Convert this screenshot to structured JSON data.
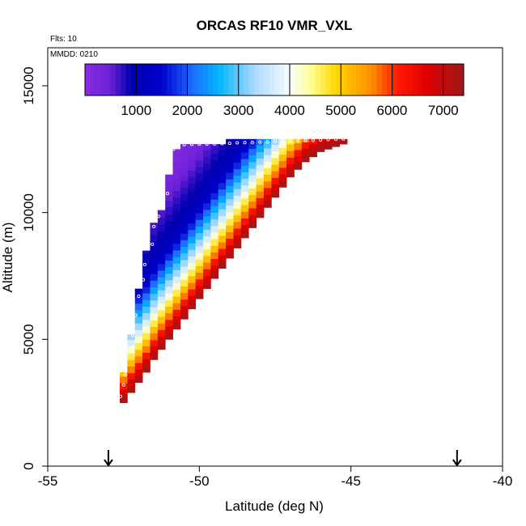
{
  "chart_data": {
    "type": "heatmap",
    "title": "ORCAS RF10 VMR_VXL",
    "annotations": {
      "flights": "Flts: 10",
      "date": "MMDD: 0210"
    },
    "xlabel": "Latitude (deg N)",
    "ylabel": "Altitude (m)",
    "xlim": [
      -55,
      -40
    ],
    "ylim": [
      0,
      16500
    ],
    "x_ticks": [
      -55,
      -50,
      -45,
      -40
    ],
    "y_ticks": [
      0,
      5000,
      10000,
      15000
    ],
    "grid": false,
    "colorbar": {
      "position": "top",
      "range": [
        0,
        7400
      ],
      "ticks": [
        1000,
        2000,
        3000,
        4000,
        5000,
        6000,
        7000
      ],
      "stops": [
        {
          "v": 0,
          "c": "#8a2be2"
        },
        {
          "v": 500,
          "c": "#6a20d8"
        },
        {
          "v": 900,
          "c": "#0000b0"
        },
        {
          "v": 1500,
          "c": "#0000cd"
        },
        {
          "v": 2100,
          "c": "#1e6cff"
        },
        {
          "v": 2600,
          "c": "#00b4ff"
        },
        {
          "v": 3300,
          "c": "#a8d8ff"
        },
        {
          "v": 4000,
          "c": "#f8fcff"
        },
        {
          "v": 4400,
          "c": "#ffff9a"
        },
        {
          "v": 4900,
          "c": "#ffd700"
        },
        {
          "v": 5600,
          "c": "#ff8c00"
        },
        {
          "v": 6100,
          "c": "#ff1a00"
        },
        {
          "v": 6700,
          "c": "#dd0000"
        },
        {
          "v": 7400,
          "c": "#a01818"
        }
      ]
    },
    "field": {
      "lat_step": 0.25,
      "alt_step": 260,
      "columns": [
        {
          "lat": -52.5,
          "alt_bottom": 2500,
          "alt_top": 3700
        },
        {
          "lat": -52.25,
          "alt_bottom": 2900,
          "alt_top": 5200
        },
        {
          "lat": -52.0,
          "alt_bottom": 3300,
          "alt_top": 7000
        },
        {
          "lat": -51.75,
          "alt_bottom": 3700,
          "alt_top": 8500
        },
        {
          "lat": -51.5,
          "alt_bottom": 4200,
          "alt_top": 9600
        },
        {
          "lat": -51.25,
          "alt_bottom": 4600,
          "alt_top": 10100
        },
        {
          "lat": -51.0,
          "alt_bottom": 5000,
          "alt_top": 11500
        },
        {
          "lat": -50.75,
          "alt_bottom": 5400,
          "alt_top": 12500
        },
        {
          "lat": -50.5,
          "alt_bottom": 5800,
          "alt_top": 12700
        },
        {
          "lat": -50.25,
          "alt_bottom": 6200,
          "alt_top": 12700
        },
        {
          "lat": -50.0,
          "alt_bottom": 6600,
          "alt_top": 12700
        },
        {
          "lat": -49.75,
          "alt_bottom": 7000,
          "alt_top": 12700
        },
        {
          "lat": -49.5,
          "alt_bottom": 7400,
          "alt_top": 12700
        },
        {
          "lat": -49.25,
          "alt_bottom": 7800,
          "alt_top": 12700
        },
        {
          "lat": -49.0,
          "alt_bottom": 8200,
          "alt_top": 12900
        },
        {
          "lat": -48.75,
          "alt_bottom": 8600,
          "alt_top": 12900
        },
        {
          "lat": -48.5,
          "alt_bottom": 9000,
          "alt_top": 12900
        },
        {
          "lat": -48.25,
          "alt_bottom": 9400,
          "alt_top": 12900
        },
        {
          "lat": -48.0,
          "alt_bottom": 9800,
          "alt_top": 12900
        },
        {
          "lat": -47.75,
          "alt_bottom": 10200,
          "alt_top": 12900
        },
        {
          "lat": -47.5,
          "alt_bottom": 10600,
          "alt_top": 12900
        },
        {
          "lat": -47.25,
          "alt_bottom": 11000,
          "alt_top": 12900
        },
        {
          "lat": -47.0,
          "alt_bottom": 11400,
          "alt_top": 12900
        },
        {
          "lat": -46.75,
          "alt_bottom": 11700,
          "alt_top": 12900
        },
        {
          "lat": -46.5,
          "alt_bottom": 12000,
          "alt_top": 12900
        },
        {
          "lat": -46.25,
          "alt_bottom": 12200,
          "alt_top": 12900
        },
        {
          "lat": -46.0,
          "alt_bottom": 12400,
          "alt_top": 12900
        },
        {
          "lat": -45.75,
          "alt_bottom": 12500,
          "alt_top": 12900
        },
        {
          "lat": -45.5,
          "alt_bottom": 12600,
          "alt_top": 12900
        },
        {
          "lat": -45.25,
          "alt_bottom": 12700,
          "alt_top": 12900
        }
      ],
      "vmr_profile": [
        {
          "d": 0,
          "v": 7300
        },
        {
          "d": 500,
          "v": 6300
        },
        {
          "d": 1000,
          "v": 5200
        },
        {
          "d": 1500,
          "v": 4300
        },
        {
          "d": 2000,
          "v": 3400
        },
        {
          "d": 2600,
          "v": 2500
        },
        {
          "d": 3200,
          "v": 1600
        },
        {
          "d": 4000,
          "v": 1000
        },
        {
          "d": 5000,
          "v": 700
        },
        {
          "d": 6000,
          "v": 300
        },
        {
          "d": 8000,
          "v": 100
        }
      ]
    },
    "flight_track": [
      {
        "lat": -52.6,
        "alt": 2750
      },
      {
        "lat": -52.5,
        "alt": 3200
      },
      {
        "lat": -52.45,
        "alt": 3600
      },
      {
        "lat": -52.2,
        "alt": 4700
      },
      {
        "lat": -52.2,
        "alt": 5150
      },
      {
        "lat": -52.1,
        "alt": 5950
      },
      {
        "lat": -52.0,
        "alt": 6700
      },
      {
        "lat": -51.85,
        "alt": 7350
      },
      {
        "lat": -51.8,
        "alt": 7950
      },
      {
        "lat": -51.55,
        "alt": 8750
      },
      {
        "lat": -51.5,
        "alt": 9450
      },
      {
        "lat": -51.35,
        "alt": 9850
      },
      {
        "lat": -51.05,
        "alt": 10750
      },
      {
        "lat": -51.0,
        "alt": 11650
      },
      {
        "lat": -50.95,
        "alt": 12150
      },
      {
        "lat": -50.85,
        "alt": 12500
      },
      {
        "lat": -50.75,
        "alt": 12650
      },
      {
        "lat": -50.5,
        "alt": 12680
      },
      {
        "lat": -50.25,
        "alt": 12690
      },
      {
        "lat": -50.0,
        "alt": 12700
      },
      {
        "lat": -49.75,
        "alt": 12700
      },
      {
        "lat": -49.5,
        "alt": 12710
      },
      {
        "lat": -49.25,
        "alt": 12720
      },
      {
        "lat": -49.0,
        "alt": 12730
      },
      {
        "lat": -48.75,
        "alt": 12750
      },
      {
        "lat": -48.5,
        "alt": 12760
      },
      {
        "lat": -48.25,
        "alt": 12770
      },
      {
        "lat": -48.0,
        "alt": 12780
      },
      {
        "lat": -47.75,
        "alt": 12790
      },
      {
        "lat": -47.5,
        "alt": 12800
      },
      {
        "lat": -47.25,
        "alt": 12810
      },
      {
        "lat": -47.0,
        "alt": 12820
      },
      {
        "lat": -46.75,
        "alt": 12830
      },
      {
        "lat": -46.5,
        "alt": 12840
      },
      {
        "lat": -46.25,
        "alt": 12850
      },
      {
        "lat": -46.0,
        "alt": 12860
      },
      {
        "lat": -45.75,
        "alt": 12880
      },
      {
        "lat": -45.5,
        "alt": 12890
      },
      {
        "lat": -45.25,
        "alt": 12900
      }
    ],
    "markers": [
      {
        "lat": -53.0,
        "alt": 0
      },
      {
        "lat": -41.5,
        "alt": 0
      }
    ]
  }
}
